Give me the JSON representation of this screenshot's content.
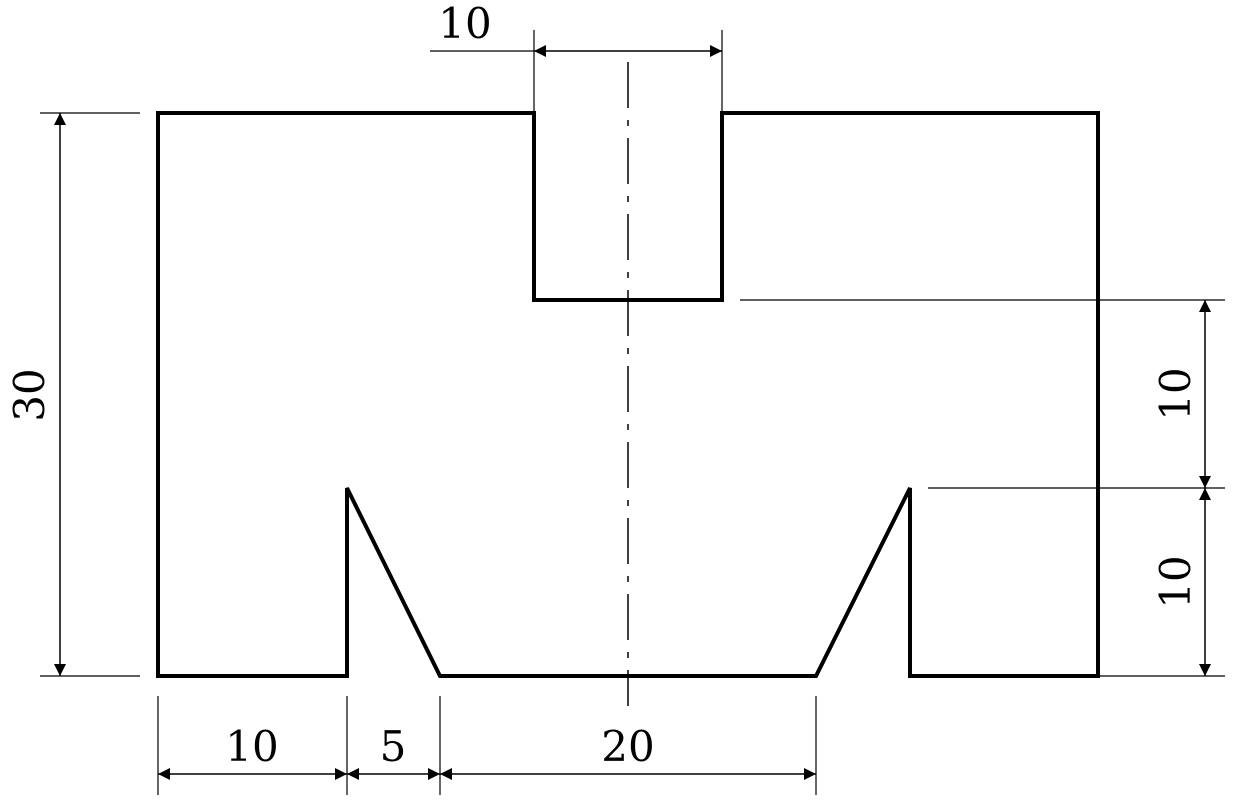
{
  "drawing": {
    "colors": {
      "outline": "#000000",
      "dimension": "#000000",
      "background": "#ffffff"
    },
    "dimensions": {
      "top_slot_width": "10",
      "overall_height": "30",
      "right_upper_height": "10",
      "right_lower_height": "10",
      "bottom_left_width": "10",
      "bottom_taper_width": "5",
      "bottom_center_width": "20"
    }
  }
}
